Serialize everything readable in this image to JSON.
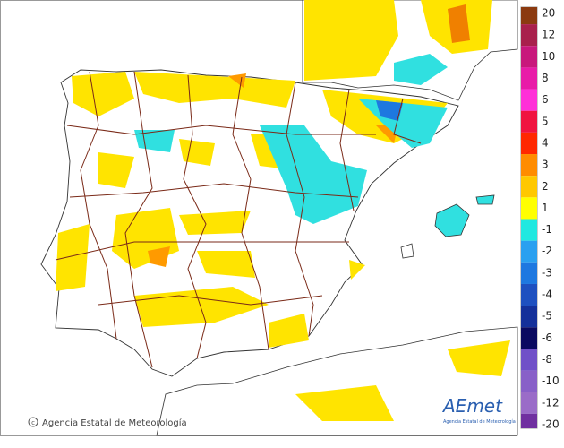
{
  "legend": {
    "items": [
      {
        "label": "20",
        "color": "#8b3a10"
      },
      {
        "label": "12",
        "color": "#a8204c"
      },
      {
        "label": "10",
        "color": "#c8187c"
      },
      {
        "label": "8",
        "color": "#e81ca8"
      },
      {
        "label": "6",
        "color": "#ff30d8"
      },
      {
        "label": "5",
        "color": "#f01440"
      },
      {
        "label": "4",
        "color": "#ff2800"
      },
      {
        "label": "3",
        "color": "#ff8c00"
      },
      {
        "label": "2",
        "color": "#ffc800"
      },
      {
        "label": "1",
        "color": "#ffff00"
      },
      {
        "label": "-1",
        "color": "#20e8e0"
      },
      {
        "label": "-2",
        "color": "#2aa0f0"
      },
      {
        "label": "-3",
        "color": "#1e78e0"
      },
      {
        "label": "-4",
        "color": "#1e50c0"
      },
      {
        "label": "-5",
        "color": "#14309a"
      },
      {
        "label": "-6",
        "color": "#0a0a60"
      },
      {
        "label": "-8",
        "color": "#7050c8"
      },
      {
        "label": "-10",
        "color": "#8860c8"
      },
      {
        "label": "-12",
        "color": "#9a6cc8"
      },
      {
        "label": "-20",
        "color": "#7030a0"
      }
    ]
  },
  "footer": {
    "copyright": "Agencia Estatal de Meteorología"
  },
  "logo": {
    "name": "AEmet",
    "subtitle": "Agencia Estatal de Meteorología"
  }
}
